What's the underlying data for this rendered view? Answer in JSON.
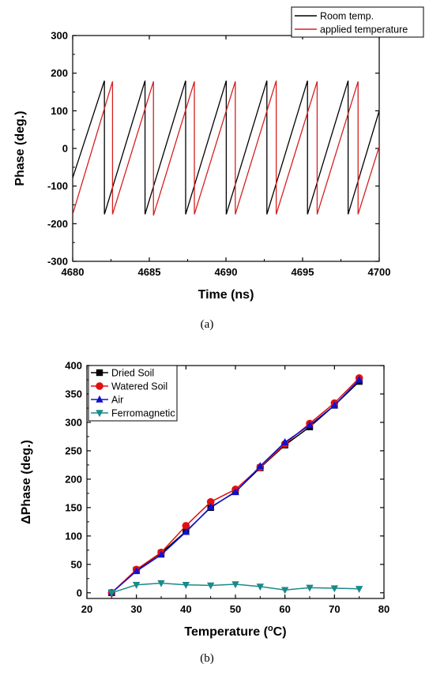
{
  "chart_data": [
    {
      "type": "line",
      "caption": "(a)",
      "xlabel": "Time (ns)",
      "ylabel": "Phase (deg.)",
      "xlim": [
        4680,
        4700
      ],
      "ylim": [
        -300,
        300
      ],
      "xticks": [
        4680,
        4685,
        4690,
        4695,
        4700
      ],
      "yticks": [
        -300,
        -200,
        -100,
        0,
        100,
        200,
        300
      ],
      "legend_position": "top-right",
      "series": [
        {
          "name": "Room temp.",
          "color": "#000000",
          "points": [
            [
              4680,
              -78
            ],
            [
              4682.07,
              180
            ],
            [
              4682.07,
              -175
            ],
            [
              4684.72,
              180
            ],
            [
              4684.72,
              -175
            ],
            [
              4687.37,
              180
            ],
            [
              4687.37,
              -175
            ],
            [
              4690.02,
              180
            ],
            [
              4690.02,
              -175
            ],
            [
              4692.67,
              180
            ],
            [
              4692.67,
              -175
            ],
            [
              4695.32,
              180
            ],
            [
              4695.32,
              -175
            ],
            [
              4697.97,
              180
            ],
            [
              4697.97,
              -175
            ],
            [
              4700,
              100
            ]
          ]
        },
        {
          "name": "applied temperature",
          "color": "#d62020",
          "points": [
            [
              4680,
              -175
            ],
            [
              4682.6,
              178
            ],
            [
              4682.6,
              -175
            ],
            [
              4685.27,
              178
            ],
            [
              4685.27,
              -178
            ],
            [
              4687.94,
              178
            ],
            [
              4687.94,
              -175
            ],
            [
              4690.61,
              178
            ],
            [
              4690.61,
              -175
            ],
            [
              4693.28,
              180
            ],
            [
              4693.28,
              -175
            ],
            [
              4695.95,
              178
            ],
            [
              4695.95,
              -175
            ],
            [
              4698.62,
              178
            ],
            [
              4698.62,
              -175
            ],
            [
              4700,
              5
            ]
          ]
        }
      ]
    },
    {
      "type": "line",
      "caption": "(b)",
      "xlabel": "Temperature (°C)",
      "ylabel": "ΔPhase (deg.)",
      "xlim": [
        20,
        80
      ],
      "ylim": [
        -10,
        400
      ],
      "xticks": [
        20,
        30,
        40,
        50,
        60,
        70,
        80
      ],
      "yticks": [
        0,
        50,
        100,
        150,
        200,
        250,
        300,
        350,
        400
      ],
      "legend_position": "top-left",
      "x": [
        25,
        30,
        35,
        40,
        45,
        50,
        55,
        60,
        65,
        70,
        75
      ],
      "series": [
        {
          "name": "Dried Soil",
          "color": "#000000",
          "marker": "square",
          "values": [
            0,
            40,
            70,
            108,
            150,
            178,
            220,
            260,
            292,
            330,
            372
          ]
        },
        {
          "name": "Watered Soil",
          "color": "#e01010",
          "marker": "circle",
          "values": [
            0,
            41,
            71,
            118,
            160,
            182,
            221,
            262,
            298,
            334,
            378
          ]
        },
        {
          "name": "Air",
          "color": "#1010d0",
          "marker": "triangle-up",
          "values": [
            0,
            38,
            67,
            107,
            151,
            177,
            223,
            265,
            295,
            330,
            375
          ]
        },
        {
          "name": "Ferromagnetic",
          "color": "#1a8a8a",
          "marker": "triangle-down",
          "values": [
            0,
            14,
            17,
            14,
            13,
            15,
            11,
            5,
            9,
            8,
            7
          ]
        }
      ]
    }
  ]
}
